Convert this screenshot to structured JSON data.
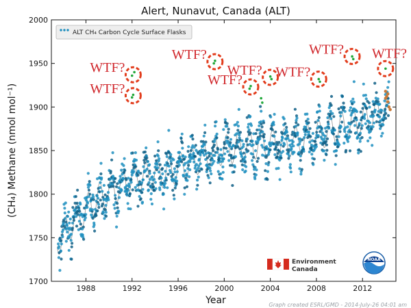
{
  "chart_data": {
    "type": "scatter",
    "title": "Alert, Nunavut, Canada (ALT)",
    "xlabel": "Year",
    "ylabel": "(CH₄) Methane (nmol mol⁻¹)",
    "xlim": [
      1985,
      2014.9
    ],
    "ylim": [
      1700,
      2000
    ],
    "x_ticks": [
      1988,
      1992,
      1996,
      2000,
      2004,
      2008,
      2012
    ],
    "y_ticks": [
      1700,
      1750,
      1800,
      1850,
      1900,
      1950,
      2000
    ],
    "legend": {
      "label": "ALT CH₄ Carbon Cycle Surface Flasks",
      "position": "top-left"
    },
    "trend": {
      "x": [
        1985.5,
        1987,
        1989,
        1991,
        1992,
        1993,
        1995,
        1997,
        1999,
        2001,
        2003,
        2005,
        2007,
        2009,
        2011,
        2013,
        2014.2
      ],
      "y": [
        1745,
        1770,
        1795,
        1810,
        1818,
        1820,
        1825,
        1835,
        1848,
        1853,
        1858,
        1858,
        1862,
        1872,
        1880,
        1890,
        1898
      ]
    },
    "trend_seasonal_amplitude": 17,
    "scatter_spread": 26,
    "annotations": [
      {
        "text": "WTF?",
        "x": 1992.1,
        "y": 1937
      },
      {
        "text": "WTF?",
        "x": 1992.1,
        "y": 1913
      },
      {
        "text": "WTF?",
        "x": 1999.2,
        "y": 1952
      },
      {
        "text": "WTF?",
        "x": 2002.3,
        "y": 1923
      },
      {
        "text": "WTF?",
        "x": 2004.0,
        "y": 1934
      },
      {
        "text": "WTF?",
        "x": 2008.2,
        "y": 1932
      },
      {
        "text": "WTF?",
        "x": 2011.1,
        "y": 1958
      },
      {
        "text": "WTF?",
        "x": 2014.0,
        "y": 1944
      }
    ],
    "highlight_points": [
      {
        "x": 1992.0,
        "y": 1936
      },
      {
        "x": 1992.2,
        "y": 1940
      },
      {
        "x": 1992.1,
        "y": 1914
      },
      {
        "x": 1992.0,
        "y": 1911
      },
      {
        "x": 1999.2,
        "y": 1953
      },
      {
        "x": 1999.1,
        "y": 1950
      },
      {
        "x": 2002.3,
        "y": 1924
      },
      {
        "x": 2002.2,
        "y": 1921
      },
      {
        "x": 2003.2,
        "y": 1910
      },
      {
        "x": 2003.3,
        "y": 1905
      },
      {
        "x": 2004.0,
        "y": 1935
      },
      {
        "x": 2004.1,
        "y": 1932
      },
      {
        "x": 2008.2,
        "y": 1932
      },
      {
        "x": 2008.3,
        "y": 1929
      },
      {
        "x": 2011.1,
        "y": 1958
      },
      {
        "x": 2011.2,
        "y": 1955
      },
      {
        "x": 2014.0,
        "y": 1944
      }
    ],
    "recent_points": [
      {
        "x": 2014.0,
        "y": 1918
      },
      {
        "x": 2014.1,
        "y": 1912
      },
      {
        "x": 2014.2,
        "y": 1906
      },
      {
        "x": 2014.3,
        "y": 1900
      },
      {
        "x": 2014.4,
        "y": 1897
      },
      {
        "x": 2014.0,
        "y": 1910
      },
      {
        "x": 2014.2,
        "y": 1915
      }
    ],
    "colors": {
      "points": "#1f8fbf",
      "points_dark": "#0f5f86",
      "trend": "#9e9e9e",
      "highlight": "#21a83a",
      "recent": "#c87a3a",
      "circles": "#e23c1c",
      "wtf": "#d0262b"
    }
  },
  "logos": {
    "environment_canada": [
      "Environment",
      "Canada"
    ],
    "noaa": "NOAA"
  },
  "credit": "Graph created ESRL/GMD - 2014-July-26 04:01 am"
}
